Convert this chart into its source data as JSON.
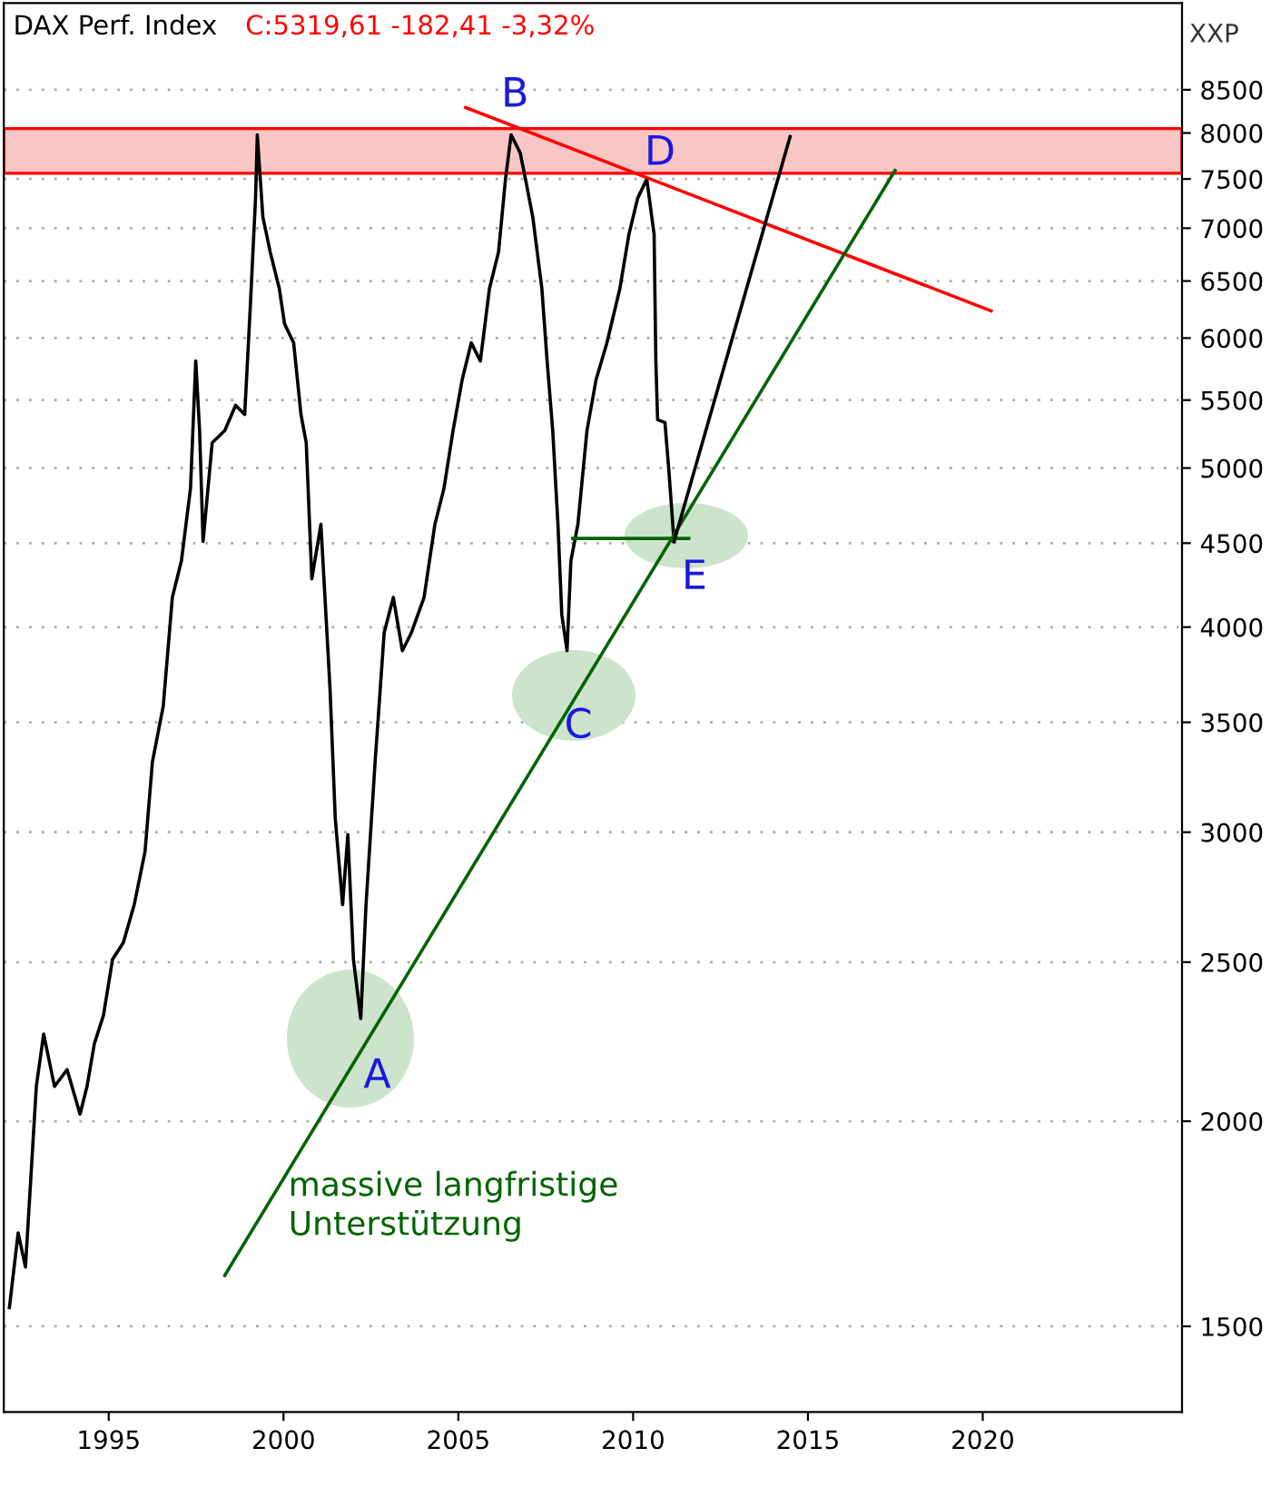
{
  "chart_data": {
    "type": "line",
    "title": "DAX Perf. Index",
    "subtitle": "C:5319,61 -182,41 -3,32%",
    "annotations": [
      "XXP",
      "massive langfristige\nUnterstützung",
      "A",
      "B",
      "C",
      "D",
      "E"
    ],
    "series": [
      {
        "color": "#000000",
        "x": [
          1992.16,
          1992.41,
          1992.62,
          1992.93,
          1993.14,
          1993.45,
          1993.81,
          1994.18,
          1994.38,
          1994.59,
          1994.85,
          1995.11,
          1995.42,
          1995.73,
          1996.04,
          1996.25,
          1996.56,
          1996.82,
          1997.08,
          1997.34,
          1997.49,
          1997.6,
          1997.7,
          1997.96,
          1998.32,
          1998.63,
          1998.89,
          1999.05,
          1999.2,
          1999.25,
          1999.41,
          1999.62,
          1999.88,
          2000.03,
          2000.29,
          2000.5,
          2000.65,
          2000.81,
          2001.07,
          2001.33,
          2001.48,
          2001.69,
          2001.84,
          2002.0,
          2002.21,
          2002.36,
          2002.62,
          2002.88,
          2003.14,
          2003.4,
          2003.66,
          2004.02,
          2004.33,
          2004.59,
          2004.85,
          2005.11,
          2005.37,
          2005.63,
          2005.89,
          2006.15,
          2006.35,
          2006.51,
          2006.77,
          2006.92,
          2007.13,
          2007.39,
          2007.54,
          2007.7,
          2007.85,
          2007.96,
          2008.11,
          2008.22,
          2008.42,
          2008.68,
          2008.94,
          2009.25,
          2009.62,
          2009.88,
          2010.13,
          2010.39,
          2010.6,
          2010.65,
          2010.7,
          2010.91,
          2011.02,
          2011.17
        ],
        "values": [
          1540,
          1710,
          1630,
          2100,
          2260,
          2100,
          2150,
          2020,
          2100,
          2230,
          2320,
          2510,
          2570,
          2710,
          2920,
          3310,
          3580,
          4170,
          4390,
          4860,
          5810,
          5270,
          4510,
          5180,
          5270,
          5460,
          5390,
          6270,
          7300,
          7980,
          7110,
          6770,
          6430,
          6120,
          5960,
          5390,
          5180,
          4280,
          4620,
          3670,
          3060,
          2710,
          2990,
          2510,
          2310,
          2710,
          3310,
          3970,
          4170,
          3870,
          3970,
          4170,
          4620,
          4860,
          5270,
          5660,
          5960,
          5810,
          6430,
          6770,
          7500,
          7980,
          7780,
          7500,
          7110,
          6430,
          5810,
          5270,
          4620,
          4070,
          3870,
          4390,
          4620,
          5270,
          5660,
          5960,
          6430,
          6940,
          7300,
          7500,
          6940,
          5810,
          5350,
          5330,
          4990,
          4510
        ]
      },
      {
        "color": "#ff0000",
        "x": [
          2005.21,
          2020.24
        ],
        "values": [
          8290,
          6233
        ]
      },
      {
        "color": "#006400",
        "x": [
          1998.32,
          2017.49
        ],
        "values": [
          1611,
          7590
        ]
      },
      {
        "color": "#006400",
        "x": [
          2008.27,
          2011.59
        ],
        "values": [
          4530,
          4530
        ]
      },
      {
        "color": "#000000",
        "x": [
          2011.17,
          2014.49
        ],
        "values": [
          4510,
          7960
        ]
      }
    ],
    "bands": [
      {
        "axis": "y",
        "from": 7560,
        "to": 8050,
        "color": "#f9c6c6"
      }
    ],
    "log": "y",
    "grid": "y",
    "xlim": [
      1992.0,
      2025.7
    ],
    "xticks": [
      1995,
      2000,
      2005,
      2010,
      2015,
      2020
    ],
    "ylim": [
      1330,
      9600
    ],
    "yticks": [
      1500,
      2000,
      2500,
      3000,
      3500,
      4000,
      4500,
      5000,
      5500,
      6000,
      6500,
      7000,
      7500,
      8000,
      8500
    ]
  }
}
